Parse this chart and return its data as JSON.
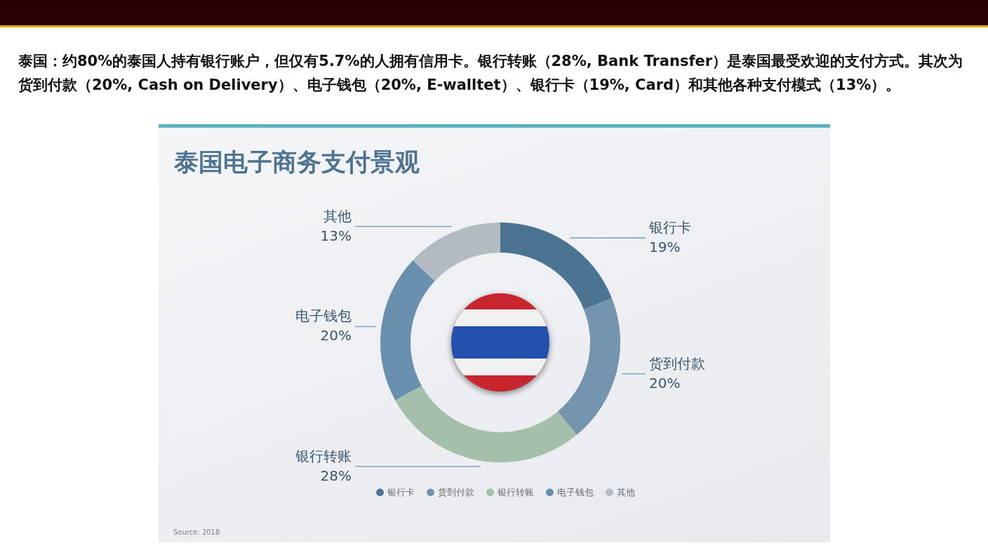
{
  "chart_data": {
    "type": "donut",
    "title": "泰国电子商务支付景观",
    "categories": [
      "银行卡",
      "货到付款",
      "银行转账",
      "电子钱包",
      "其他"
    ],
    "values": [
      19,
      20,
      28,
      20,
      13
    ],
    "colors": [
      "#4b7392",
      "#7595ae",
      "#a4bfaa",
      "#6a90b0",
      "#b3bac2"
    ],
    "value_labels": [
      "19%",
      "20%",
      "28%",
      "20%",
      "13%"
    ],
    "legend": "bottom",
    "annotations": [
      "泰国：约80%的泰国人持有银行账户，但仅有5.7%的人拥有信用卡。银行转账（28%, Bank Transfer）是泰国最受欢迎的支付方式。其次为货到付款（20%, Cash on Delivery）、电子钱包（20%, E-walltet）、银行卡（19%, Card）和其他各种支付模式（13%）。",
      "Source: 2018"
    ]
  }
}
